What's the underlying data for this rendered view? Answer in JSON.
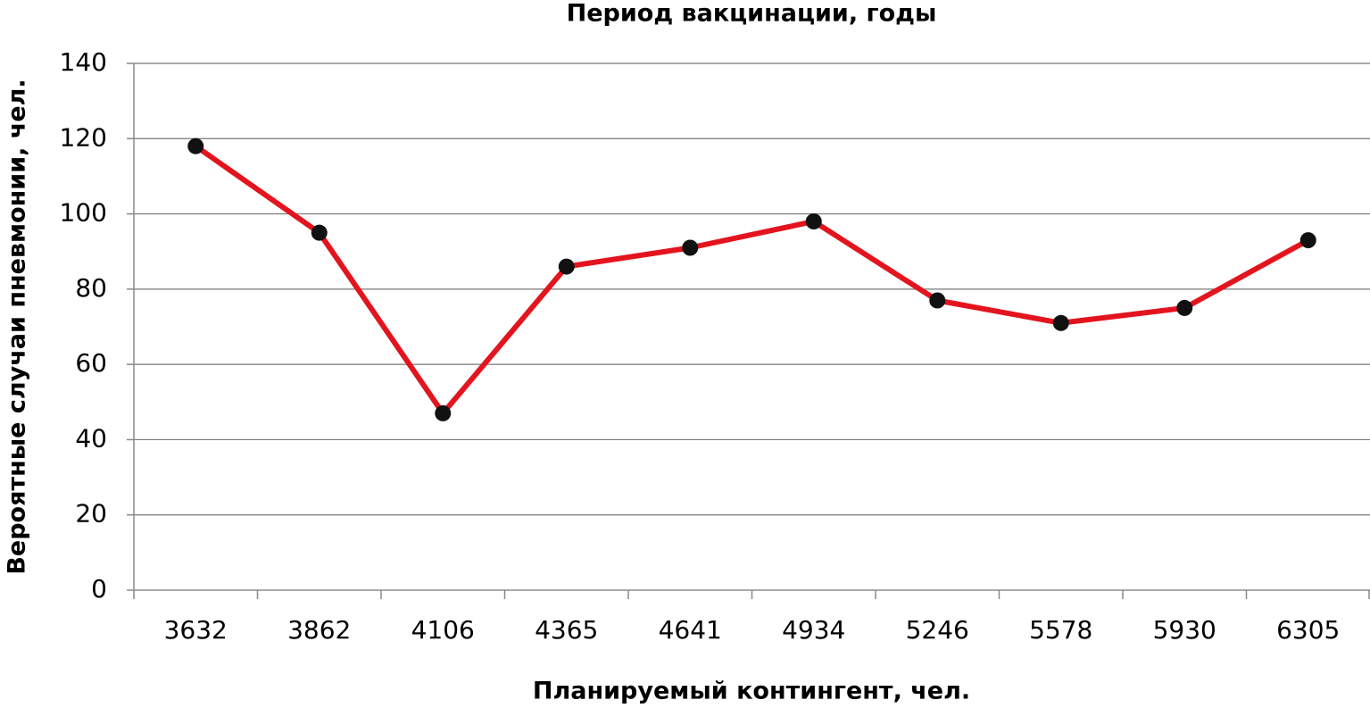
{
  "chart_data": {
    "type": "line",
    "title": "Период вакцинации, годы",
    "x_label": "Планируемый контингент, чел.",
    "y_label": "Вероятные случаи пневмонии, чел.",
    "categories": [
      "3632",
      "3862",
      "4106",
      "4365",
      "4641",
      "4934",
      "5246",
      "5578",
      "5930",
      "6305"
    ],
    "series": [
      {
        "name": "Вероятные случаи пневмонии",
        "color": "#e3141e",
        "marker_color": "#111111",
        "values": [
          118,
          95,
          47,
          86,
          91,
          98,
          77,
          71,
          75,
          93
        ]
      }
    ],
    "ylim": [
      0,
      140
    ],
    "yticks": [
      0,
      20,
      40,
      60,
      80,
      100,
      120,
      140
    ],
    "grid": true
  }
}
